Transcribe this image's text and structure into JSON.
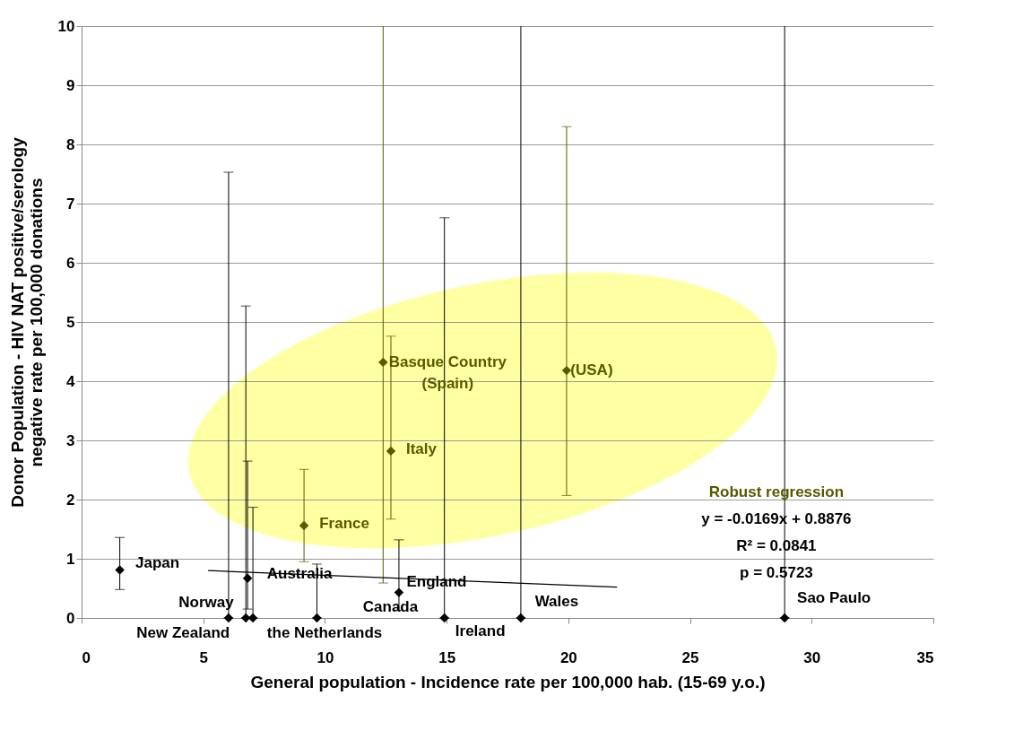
{
  "chart_data": {
    "type": "scatter",
    "xlabel": "General population - Incidence rate per 100,000 hab. (15-69 y.o.)",
    "ylabel": "Donor Population - HIV NAT positive/serology negative rate per 100,000 donations",
    "xlim": [
      0,
      35
    ],
    "xticks": [
      0,
      5,
      10,
      15,
      20,
      25,
      30,
      35
    ],
    "ylim": [
      0,
      10
    ],
    "yticks": [
      0,
      1,
      2,
      3,
      4,
      5,
      6,
      7,
      8,
      9,
      10
    ],
    "grid": "y",
    "marker": "diamond",
    "series": [
      {
        "color": "#000000",
        "x": [
          1.57,
          6.04,
          6.75,
          7.04,
          6.82,
          9.67,
          13.04,
          14.91,
          18.05,
          28.89
        ],
        "values": [
          0.81,
          0,
          0,
          0,
          0.67,
          0,
          0.43,
          0,
          0,
          0
        ],
        "errors": [
          [
            0.48,
            1.36
          ],
          [
            0,
            7.53
          ],
          [
            0,
            5.27
          ],
          [
            0,
            1.87
          ],
          [
            0.15,
            2.65
          ],
          [
            0,
            0.91
          ],
          [
            0.13,
            1.32
          ],
          [
            0,
            6.76
          ],
          [
            0,
            10
          ],
          [
            0,
            10
          ]
        ]
      },
      {
        "color": "#595900",
        "x": [
          9.14,
          12.39,
          12.71,
          19.93
        ],
        "values": [
          1.56,
          4.32,
          2.82,
          4.18
        ],
        "errors": [
          [
            0.95,
            2.51
          ],
          [
            0.59,
            10
          ],
          [
            1.67,
            4.76
          ],
          [
            2.07,
            8.3
          ]
        ]
      },
      {
        "type": "line",
        "color": "#000000",
        "marker": "none",
        "x": [
          5.2,
          22
        ],
        "values": [
          0.8,
          0.52
        ]
      }
    ],
    "annotations": [
      {
        "text": "Japan",
        "x": 1.57,
        "y": 0.81
      },
      {
        "text": "Norway",
        "x": 6.04,
        "y": 0
      },
      {
        "text": "New Zealand",
        "x": 6.75,
        "y": 0
      },
      {
        "text": "the Netherlands",
        "x": 7.04,
        "y": 0
      },
      {
        "text": "Australia",
        "x": 6.82,
        "y": 0.67
      },
      {
        "text": "Canada",
        "x": 9.67,
        "y": 0
      },
      {
        "text": "France",
        "x": 9.14,
        "y": 1.56
      },
      {
        "text": "Basque Country\n(Spain)",
        "x": 12.39,
        "y": 4.32
      },
      {
        "text": "Italy",
        "x": 12.71,
        "y": 2.82
      },
      {
        "text": "England",
        "x": 13.04,
        "y": 0.43
      },
      {
        "text": "Ireland",
        "x": 14.91,
        "y": 0
      },
      {
        "text": "Wales",
        "x": 18.05,
        "y": 0
      },
      {
        "text": "Sao Paulo",
        "x": 28.89,
        "y": 0
      },
      {
        "text": "(USA)",
        "x": 19.93,
        "y": 4.18
      },
      "Robust regression",
      "y = -0.0169x + 0.8876",
      "R² = 0.0841",
      "p = 0.5723"
    ]
  }
}
